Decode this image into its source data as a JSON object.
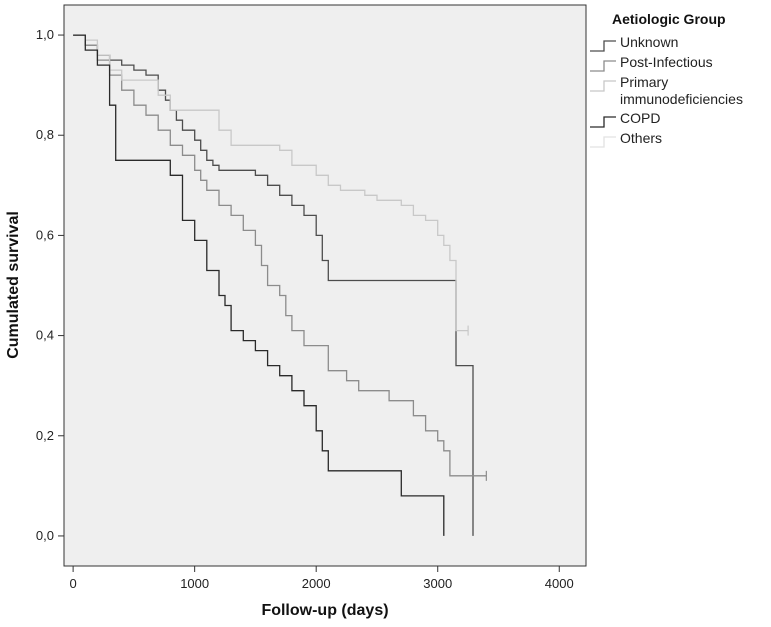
{
  "chart_data": {
    "type": "line",
    "subtype": "kaplan-meier-step",
    "xlabel": "Follow-up (days)",
    "ylabel": "Cumulated survival",
    "xlim": [
      -75,
      4220
    ],
    "ylim": [
      -0.06,
      1.06
    ],
    "x_ticks": [
      0,
      1000,
      2000,
      3000,
      4000
    ],
    "x_tick_labels": [
      "0",
      "1000",
      "2000",
      "3000",
      "4000"
    ],
    "y_ticks": [
      0.0,
      0.2,
      0.4,
      0.6,
      0.8,
      1.0
    ],
    "y_tick_labels": [
      "0,0",
      "0,2",
      "0,4",
      "0,6",
      "0,8",
      "1,0"
    ],
    "grid": false,
    "plot_background": "#efefef",
    "legend": {
      "title": "Aetiologic Group",
      "placement": "right"
    },
    "series": [
      {
        "name": "Unknown",
        "color": "#4d4d4d",
        "points": [
          [
            0,
            1.0
          ],
          [
            100,
            0.98
          ],
          [
            200,
            0.96
          ],
          [
            300,
            0.95
          ],
          [
            400,
            0.94
          ],
          [
            500,
            0.93
          ],
          [
            600,
            0.92
          ],
          [
            700,
            0.89
          ],
          [
            760,
            0.87
          ],
          [
            800,
            0.85
          ],
          [
            850,
            0.83
          ],
          [
            900,
            0.81
          ],
          [
            1000,
            0.79
          ],
          [
            1050,
            0.77
          ],
          [
            1100,
            0.75
          ],
          [
            1150,
            0.74
          ],
          [
            1200,
            0.73
          ],
          [
            1500,
            0.72
          ],
          [
            1600,
            0.7
          ],
          [
            1700,
            0.68
          ],
          [
            1800,
            0.66
          ],
          [
            1900,
            0.64
          ],
          [
            2000,
            0.6
          ],
          [
            2050,
            0.55
          ],
          [
            2100,
            0.51
          ],
          [
            3150,
            0.51
          ],
          [
            3150,
            0.34
          ],
          [
            3290,
            0.34
          ],
          [
            3290,
            0.0
          ]
        ]
      },
      {
        "name": "Post-Infectious",
        "color": "#8c8c8c",
        "points": [
          [
            0,
            1.0
          ],
          [
            100,
            0.98
          ],
          [
            200,
            0.95
          ],
          [
            300,
            0.92
          ],
          [
            400,
            0.89
          ],
          [
            500,
            0.86
          ],
          [
            600,
            0.84
          ],
          [
            700,
            0.81
          ],
          [
            800,
            0.78
          ],
          [
            900,
            0.76
          ],
          [
            1000,
            0.73
          ],
          [
            1050,
            0.71
          ],
          [
            1100,
            0.69
          ],
          [
            1200,
            0.66
          ],
          [
            1300,
            0.64
          ],
          [
            1400,
            0.61
          ],
          [
            1500,
            0.58
          ],
          [
            1550,
            0.54
          ],
          [
            1600,
            0.5
          ],
          [
            1700,
            0.48
          ],
          [
            1750,
            0.44
          ],
          [
            1800,
            0.41
          ],
          [
            1900,
            0.38
          ],
          [
            2100,
            0.33
          ],
          [
            2250,
            0.31
          ],
          [
            2350,
            0.29
          ],
          [
            2600,
            0.27
          ],
          [
            2800,
            0.24
          ],
          [
            2900,
            0.21
          ],
          [
            3000,
            0.19
          ],
          [
            3050,
            0.17
          ],
          [
            3100,
            0.12
          ],
          [
            3400,
            0.12
          ]
        ]
      },
      {
        "name": "Primary immunodeficiencies",
        "color": "#c8c8c8",
        "points": [
          [
            0,
            1.0
          ],
          [
            100,
            0.99
          ],
          [
            200,
            0.96
          ],
          [
            300,
            0.93
          ],
          [
            400,
            0.91
          ],
          [
            600,
            0.91
          ],
          [
            700,
            0.88
          ],
          [
            800,
            0.85
          ],
          [
            1000,
            0.85
          ],
          [
            1200,
            0.81
          ],
          [
            1300,
            0.78
          ],
          [
            1600,
            0.78
          ],
          [
            1700,
            0.77
          ],
          [
            1800,
            0.74
          ],
          [
            2000,
            0.72
          ],
          [
            2100,
            0.7
          ],
          [
            2200,
            0.69
          ],
          [
            2400,
            0.68
          ],
          [
            2500,
            0.67
          ],
          [
            2700,
            0.66
          ],
          [
            2800,
            0.64
          ],
          [
            2900,
            0.63
          ],
          [
            3000,
            0.6
          ],
          [
            3050,
            0.58
          ],
          [
            3100,
            0.55
          ],
          [
            3150,
            0.41
          ],
          [
            3250,
            0.41
          ]
        ]
      },
      {
        "name": "COPD",
        "color": "#2a2a2a",
        "points": [
          [
            0,
            1.0
          ],
          [
            100,
            0.97
          ],
          [
            200,
            0.94
          ],
          [
            300,
            0.86
          ],
          [
            350,
            0.75
          ],
          [
            750,
            0.75
          ],
          [
            800,
            0.72
          ],
          [
            900,
            0.63
          ],
          [
            1000,
            0.59
          ],
          [
            1100,
            0.53
          ],
          [
            1200,
            0.48
          ],
          [
            1250,
            0.46
          ],
          [
            1300,
            0.41
          ],
          [
            1400,
            0.39
          ],
          [
            1500,
            0.37
          ],
          [
            1600,
            0.34
          ],
          [
            1700,
            0.32
          ],
          [
            1800,
            0.29
          ],
          [
            1900,
            0.26
          ],
          [
            2000,
            0.21
          ],
          [
            2050,
            0.17
          ],
          [
            2100,
            0.13
          ],
          [
            2700,
            0.13
          ],
          [
            2700,
            0.08
          ],
          [
            3050,
            0.08
          ],
          [
            3050,
            0.0
          ]
        ]
      },
      {
        "name": "Others",
        "color": "#e2e2e2",
        "points": []
      }
    ]
  }
}
